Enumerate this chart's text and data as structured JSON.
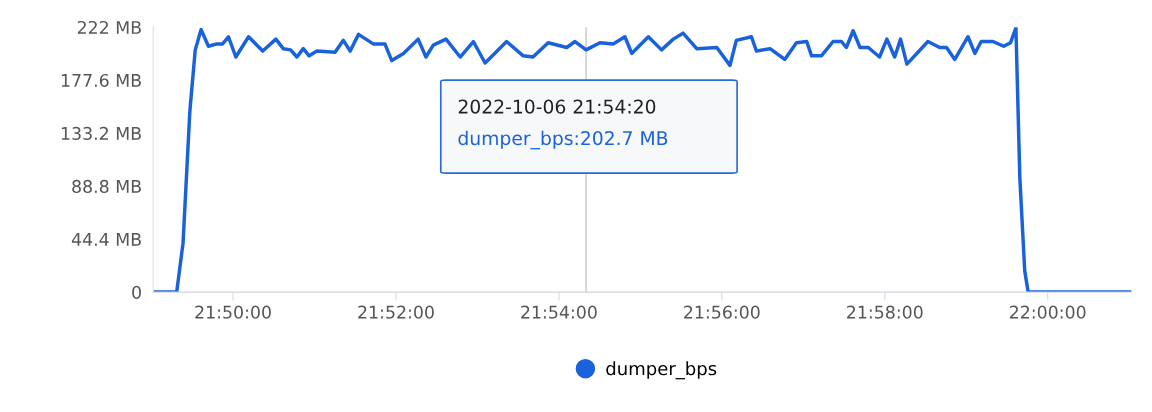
{
  "chart_data": {
    "type": "line",
    "x": [
      21.817,
      21.8218,
      21.8231,
      21.8245,
      21.8256,
      21.8268,
      21.8283,
      21.83,
      21.8312,
      21.8324,
      21.8339,
      21.8365,
      21.8394,
      21.8421,
      21.8436,
      21.8451,
      21.8464,
      21.8477,
      21.8489,
      21.8505,
      21.8542,
      21.8559,
      21.8573,
      21.859,
      21.862,
      21.8644,
      21.8658,
      21.8682,
      21.8712,
      21.8728,
      21.8743,
      21.8769,
      21.8798,
      21.8825,
      21.8849,
      21.8893,
      21.8927,
      21.8947,
      21.8978,
      21.9016,
      21.9033,
      21.90556,
      21.9084,
      21.9111,
      21.9135,
      21.9149,
      21.9183,
      21.921,
      21.9234,
      21.9254,
      21.9282,
      21.9323,
      21.935,
      21.9363,
      21.9394,
      21.9404,
      21.9432,
      21.9462,
      21.9486,
      21.9507,
      21.9517,
      21.9537,
      21.9561,
      21.9578,
      21.9588,
      21.9602,
      21.9616,
      21.9633,
      21.9656,
      21.9671,
      21.9687,
      21.9699,
      21.9712,
      21.9755,
      21.9779,
      21.9793,
      21.981,
      21.9837,
      21.9851,
      21.9864,
      21.9888,
      21.991,
      21.9924,
      21.9935,
      21.9943,
      21.9953,
      21.996,
      22.0171
    ],
    "series": [
      {
        "name": "dumper_bps",
        "color": "#1a62dc",
        "values": [
          0,
          0,
          41,
          152,
          203,
          220,
          206,
          208,
          208,
          214,
          197,
          214,
          202,
          212,
          204,
          203,
          197,
          204,
          198,
          202,
          201,
          211,
          202,
          216,
          208,
          208,
          194,
          200,
          212,
          197,
          207,
          212,
          197,
          210,
          192,
          210,
          198,
          197,
          209,
          205,
          210,
          203,
          209,
          208,
          214,
          200,
          214,
          203,
          212,
          217,
          204,
          205,
          190,
          211,
          214,
          202,
          204,
          195,
          209,
          210,
          198,
          198,
          210,
          210,
          205,
          219,
          205,
          205,
          197,
          212,
          197,
          212,
          191,
          210,
          205,
          205,
          195,
          214,
          200,
          210,
          210,
          206,
          209,
          221.5,
          96,
          18,
          0,
          0
        ]
      }
    ],
    "xlim": [
      21.817,
      22.0171
    ],
    "xticks": [
      {
        "value": 21.83333,
        "label": "21:50:00"
      },
      {
        "value": 21.86667,
        "label": "21:52:00"
      },
      {
        "value": 21.9,
        "label": "21:54:00"
      },
      {
        "value": 21.93333,
        "label": "21:56:00"
      },
      {
        "value": 21.96667,
        "label": "21:58:00"
      },
      {
        "value": 22.0,
        "label": "22:00:00"
      }
    ],
    "ylim": [
      0,
      222
    ],
    "yticks": [
      0,
      {
        "value": 44.4,
        "label": "44.4 MB"
      },
      {
        "value": 88.8,
        "label": "88.8 MB"
      },
      {
        "value": 133.2,
        "label": "133.2 MB"
      },
      {
        "value": 177.6,
        "label": "177.6 MB"
      },
      {
        "value": 222,
        "label": "222 MB"
      }
    ],
    "ref_lines": [
      {
        "axis": "x",
        "value": 21.90556,
        "color": "#c8c8c8"
      }
    ],
    "annotations": [
      "2022-10-06 21:54:20",
      "dumper_bps:202.7 MB"
    ],
    "legend": "bottom"
  }
}
